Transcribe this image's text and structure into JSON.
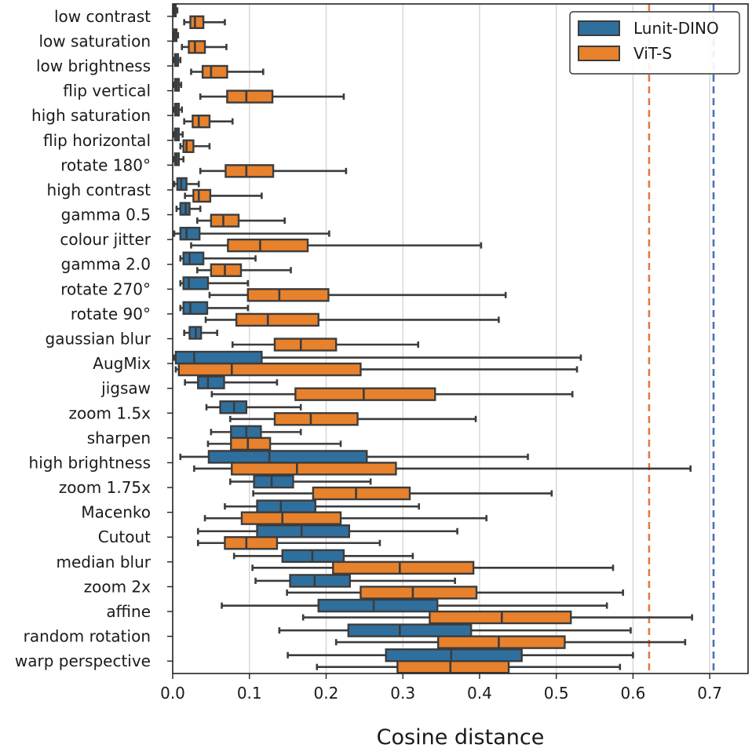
{
  "chart_data": {
    "type": "box",
    "orientation": "horizontal",
    "xlabel": "Cosine distance",
    "xlim": [
      0,
      0.75
    ],
    "xticks": [
      "0.0",
      "0.1",
      "0.2",
      "0.3",
      "0.4",
      "0.5",
      "0.6",
      "0.7"
    ],
    "grid": "vertical",
    "legend_position": "top-right",
    "categories": [
      "low contrast",
      "low saturation",
      "low brightness",
      "flip vertical",
      "high saturation",
      "flip horizontal",
      "rotate 180°",
      "high contrast",
      "gamma 0.5",
      "colour jitter",
      "gamma 2.0",
      "rotate 270°",
      "rotate 90°",
      "gaussian blur",
      "AugMix",
      "jigsaw",
      "zoom 1.5x",
      "sharpen",
      "high brightness",
      "zoom 1.75x",
      "Macenko",
      "Cutout",
      "median blur",
      "zoom 2x",
      "affine",
      "random rotation",
      "warp perspective"
    ],
    "series": [
      {
        "name": "Lunit-DINO",
        "color": "#2f6f9e",
        "boxes": [
          [
            0.001,
            0.002,
            0.003,
            0.004,
            0.006
          ],
          [
            0.001,
            0.002,
            0.003,
            0.005,
            0.007
          ],
          [
            0.001,
            0.003,
            0.004,
            0.007,
            0.01
          ],
          [
            0.001,
            0.003,
            0.005,
            0.008,
            0.011
          ],
          [
            0.001,
            0.003,
            0.005,
            0.008,
            0.012
          ],
          [
            0.001,
            0.003,
            0.005,
            0.008,
            0.013
          ],
          [
            0.001,
            0.003,
            0.005,
            0.008,
            0.014
          ],
          [
            0.002,
            0.006,
            0.011,
            0.018,
            0.034
          ],
          [
            0.005,
            0.01,
            0.017,
            0.022,
            0.036
          ],
          [
            0.002,
            0.01,
            0.018,
            0.035,
            0.204
          ],
          [
            0.01,
            0.014,
            0.022,
            0.04,
            0.108
          ],
          [
            0.01,
            0.014,
            0.021,
            0.046,
            0.098
          ],
          [
            0.01,
            0.014,
            0.023,
            0.045,
            0.098
          ],
          [
            0.015,
            0.022,
            0.03,
            0.037,
            0.058
          ],
          [
            0.002,
            0.004,
            0.028,
            0.116,
            0.532
          ],
          [
            0.016,
            0.033,
            0.046,
            0.067,
            0.136
          ],
          [
            0.044,
            0.062,
            0.08,
            0.096,
            0.167
          ],
          [
            0.05,
            0.076,
            0.096,
            0.115,
            0.167
          ],
          [
            0.01,
            0.047,
            0.126,
            0.253,
            0.463
          ],
          [
            0.075,
            0.106,
            0.129,
            0.157,
            0.258
          ],
          [
            0.068,
            0.11,
            0.141,
            0.186,
            0.321
          ],
          [
            0.033,
            0.11,
            0.168,
            0.23,
            0.371
          ],
          [
            0.08,
            0.143,
            0.182,
            0.223,
            0.313
          ],
          [
            0.108,
            0.153,
            0.185,
            0.231,
            0.368
          ],
          [
            0.064,
            0.19,
            0.262,
            0.345,
            0.566
          ],
          [
            0.139,
            0.229,
            0.296,
            0.389,
            0.597
          ],
          [
            0.15,
            0.278,
            0.363,
            0.455,
            0.6
          ]
        ]
      },
      {
        "name": "ViT-S",
        "color": "#e8812c",
        "boxes": [
          [
            0.015,
            0.023,
            0.029,
            0.04,
            0.068
          ],
          [
            0.012,
            0.021,
            0.029,
            0.042,
            0.07
          ],
          [
            0.024,
            0.039,
            0.05,
            0.071,
            0.118
          ],
          [
            0.036,
            0.071,
            0.096,
            0.13,
            0.223
          ],
          [
            0.015,
            0.026,
            0.034,
            0.048,
            0.078
          ],
          [
            0.01,
            0.014,
            0.018,
            0.027,
            0.048
          ],
          [
            0.036,
            0.069,
            0.096,
            0.131,
            0.226
          ],
          [
            0.016,
            0.027,
            0.034,
            0.049,
            0.116
          ],
          [
            0.032,
            0.05,
            0.066,
            0.086,
            0.146
          ],
          [
            0.024,
            0.072,
            0.114,
            0.176,
            0.402
          ],
          [
            0.032,
            0.05,
            0.068,
            0.089,
            0.154
          ],
          [
            0.048,
            0.098,
            0.139,
            0.203,
            0.434
          ],
          [
            0.043,
            0.083,
            0.124,
            0.19,
            0.425
          ],
          [
            0.078,
            0.133,
            0.167,
            0.213,
            0.32
          ],
          [
            0.004,
            0.008,
            0.077,
            0.245,
            0.527
          ],
          [
            0.051,
            0.16,
            0.249,
            0.342,
            0.521
          ],
          [
            0.075,
            0.133,
            0.18,
            0.241,
            0.395
          ],
          [
            0.046,
            0.076,
            0.098,
            0.127,
            0.219
          ],
          [
            0.028,
            0.077,
            0.162,
            0.291,
            0.675
          ],
          [
            0.105,
            0.183,
            0.239,
            0.309,
            0.494
          ],
          [
            0.042,
            0.09,
            0.143,
            0.219,
            0.409
          ],
          [
            0.033,
            0.068,
            0.096,
            0.136,
            0.27
          ],
          [
            0.104,
            0.209,
            0.296,
            0.392,
            0.574
          ],
          [
            0.149,
            0.245,
            0.313,
            0.396,
            0.587
          ],
          [
            0.17,
            0.335,
            0.429,
            0.519,
            0.677
          ],
          [
            0.213,
            0.346,
            0.425,
            0.511,
            0.668
          ],
          [
            0.188,
            0.293,
            0.362,
            0.438,
            0.583
          ]
        ]
      }
    ],
    "reference_lines": [
      {
        "series": "ViT-S",
        "x": 0.621,
        "color": "#e07b45",
        "style": "dashed"
      },
      {
        "series": "Lunit-DINO",
        "x": 0.705,
        "color": "#4a72b8",
        "style": "dashed"
      }
    ]
  }
}
